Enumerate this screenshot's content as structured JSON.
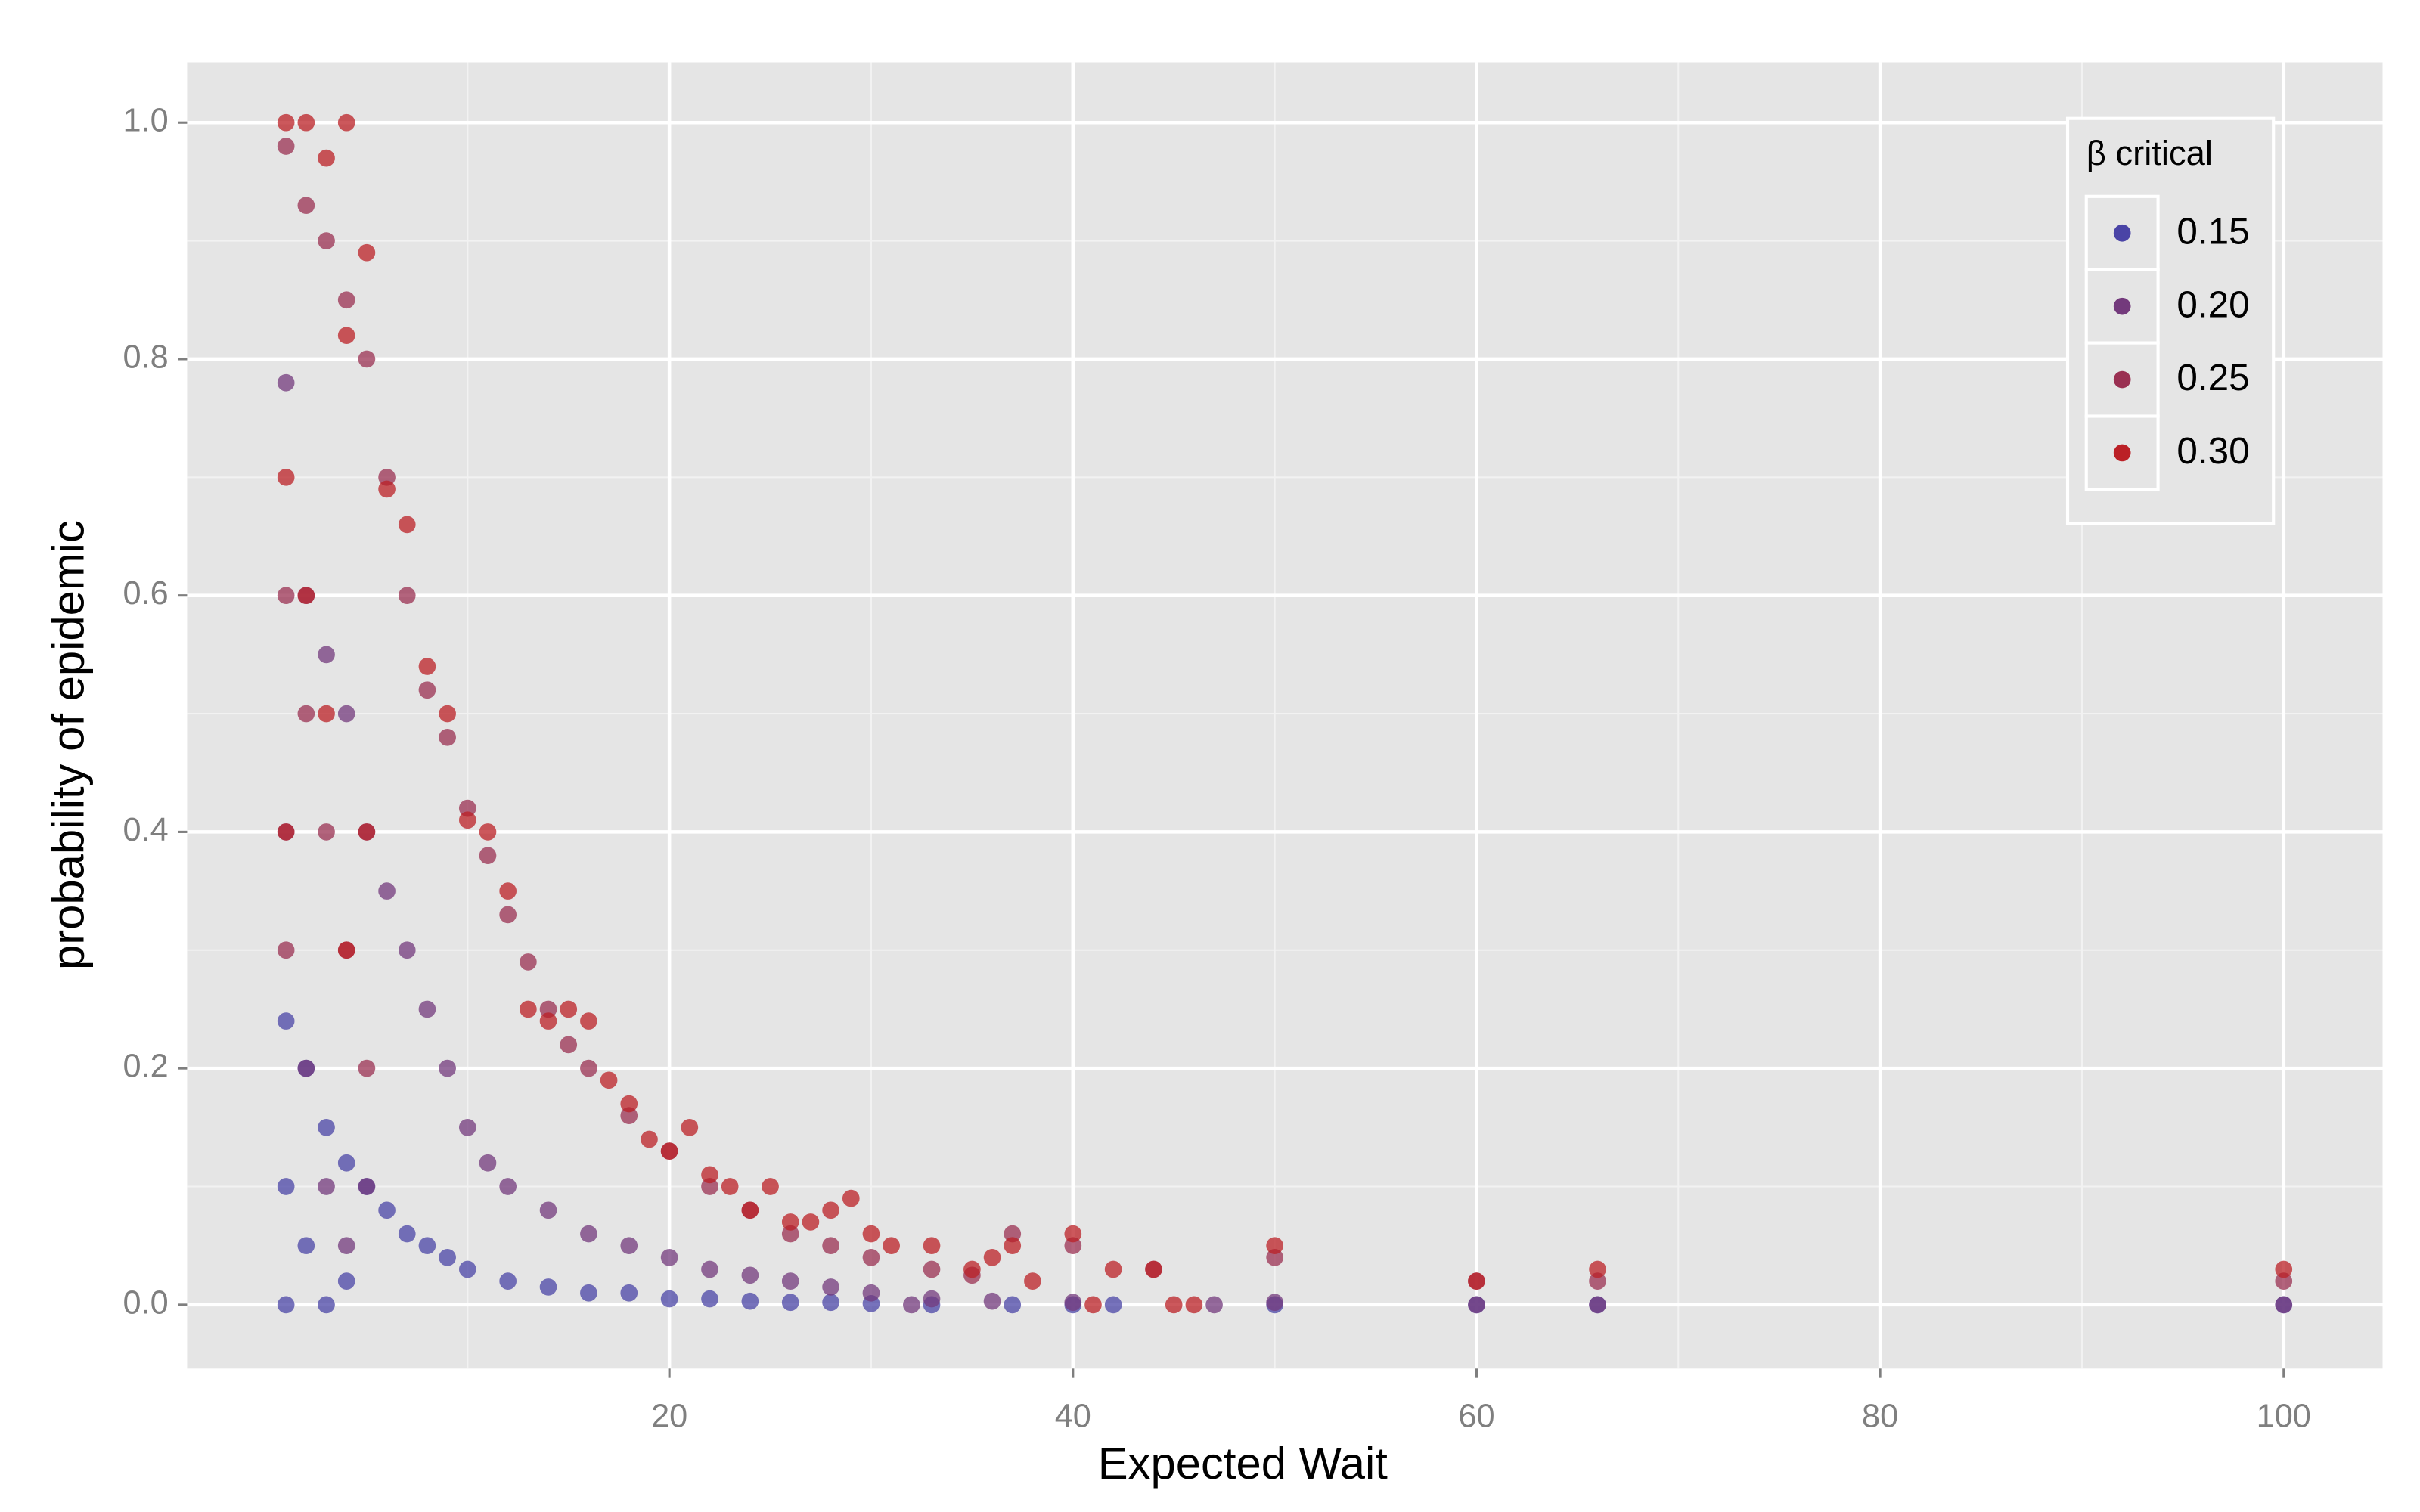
{
  "chart_data": {
    "type": "scatter",
    "xlabel": "Expected Wait",
    "ylabel": "probability of epidemic",
    "legend_title": "β critical",
    "legend_position": "top-right",
    "grid": true,
    "background": "#e5e5e5",
    "xlim": [
      -3.9,
      104.9
    ],
    "ylim": [
      -0.054,
      1.051
    ],
    "xticks": [
      20,
      40,
      60,
      80,
      100
    ],
    "yticks": [
      {
        "value": 0,
        "label": "0.0"
      },
      0.2,
      0.4,
      0.6,
      0.8,
      {
        "value": 1,
        "label": "1.0"
      }
    ],
    "x_minor_grid": [
      10,
      30,
      50,
      70,
      90
    ],
    "y_minor_grid": [
      0.1,
      0.3,
      0.5,
      0.7,
      0.9
    ],
    "series": [
      {
        "name": "0.15",
        "color": "#4a44a6",
        "x": [
          1,
          1,
          1,
          2,
          2,
          3,
          3,
          4,
          4,
          5,
          6,
          7,
          8,
          9,
          10,
          12,
          14,
          16,
          18,
          20,
          22,
          24,
          26,
          28,
          30,
          33,
          37,
          40,
          42,
          50,
          60,
          66,
          100
        ],
        "values": [
          0.24,
          0.1,
          0,
          0.2,
          0.05,
          0.15,
          0,
          0.12,
          0.02,
          0.1,
          0.08,
          0.06,
          0.05,
          0.04,
          0.03,
          0.02,
          0.015,
          0.01,
          0.01,
          0.005,
          0.005,
          0.003,
          0.002,
          0.002,
          0.001,
          0,
          0,
          0,
          0,
          0,
          0,
          0,
          0
        ]
      },
      {
        "name": "0.20",
        "color": "#733a7c",
        "x": [
          1,
          1,
          2,
          2,
          3,
          3,
          4,
          4,
          5,
          5,
          6,
          7,
          8,
          9,
          10,
          11,
          12,
          14,
          16,
          18,
          20,
          22,
          24,
          26,
          28,
          30,
          32,
          33,
          36,
          40,
          47,
          50,
          60,
          66,
          100
        ],
        "values": [
          0.78,
          0.4,
          0.6,
          0.2,
          0.55,
          0.1,
          0.5,
          0.05,
          0.4,
          0.1,
          0.35,
          0.3,
          0.25,
          0.2,
          0.15,
          0.12,
          0.1,
          0.08,
          0.06,
          0.05,
          0.04,
          0.03,
          0.025,
          0.02,
          0.015,
          0.01,
          0,
          0.005,
          0.003,
          0.002,
          0,
          0.002,
          0,
          0,
          0
        ]
      },
      {
        "name": "0.25",
        "color": "#9a3052",
        "x": [
          1,
          1,
          1,
          2,
          2,
          3,
          3,
          4,
          4,
          5,
          5,
          6,
          7,
          8,
          9,
          10,
          11,
          12,
          13,
          14,
          15,
          16,
          18,
          20,
          22,
          24,
          26,
          28,
          30,
          33,
          35,
          37,
          40,
          44,
          50,
          60,
          66,
          100
        ],
        "values": [
          0.98,
          0.6,
          0.3,
          0.93,
          0.5,
          0.9,
          0.4,
          0.85,
          0.3,
          0.8,
          0.2,
          0.7,
          0.6,
          0.52,
          0.48,
          0.42,
          0.38,
          0.33,
          0.29,
          0.25,
          0.22,
          0.2,
          0.16,
          0.13,
          0.1,
          0.08,
          0.06,
          0.05,
          0.04,
          0.03,
          0.025,
          0.06,
          0.05,
          0.03,
          0.04,
          0.02,
          0.02,
          0.02
        ]
      },
      {
        "name": "0.30",
        "color": "#bb2026",
        "x": [
          1,
          1,
          1,
          2,
          2,
          3,
          3,
          4,
          4,
          4,
          5,
          5,
          6,
          7,
          8,
          9,
          10,
          11,
          12,
          13,
          14,
          15,
          16,
          17,
          18,
          19,
          20,
          21,
          22,
          23,
          24,
          25,
          26,
          27,
          28,
          29,
          30,
          31,
          33,
          35,
          36,
          37,
          38,
          40,
          41,
          42,
          44,
          45,
          46,
          50,
          60,
          66,
          100
        ],
        "values": [
          1,
          0.7,
          0.4,
          1,
          0.6,
          0.97,
          0.5,
          1,
          0.82,
          0.3,
          0.89,
          0.4,
          0.69,
          0.66,
          0.54,
          0.5,
          0.41,
          0.4,
          0.35,
          0.25,
          0.24,
          0.25,
          0.24,
          0.19,
          0.17,
          0.14,
          0.13,
          0.15,
          0.11,
          0.1,
          0.08,
          0.1,
          0.07,
          0.07,
          0.08,
          0.09,
          0.06,
          0.05,
          0.05,
          0.03,
          0.04,
          0.05,
          0.02,
          0.06,
          0,
          0.03,
          0.03,
          0,
          0,
          0.05,
          0.02,
          0.03,
          0.03
        ]
      }
    ]
  }
}
